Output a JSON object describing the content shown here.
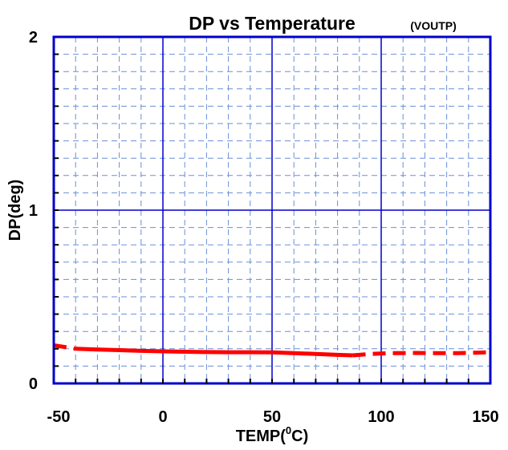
{
  "chart_data": {
    "type": "line",
    "title": "DP vs Temperature",
    "subtitle": "(VOUTP)",
    "xlabel": "TEMP",
    "xlabel_suffix": "C",
    "xlabel_superscript": "0",
    "ylabel": "DP(deg)",
    "xlim": [
      -50,
      150
    ],
    "ylim": [
      0,
      2
    ],
    "x_ticks": [
      -50,
      0,
      50,
      100,
      150
    ],
    "y_ticks": [
      0,
      1,
      2
    ],
    "x_tick_labels": [
      "-50",
      "0",
      "50",
      "100",
      "150"
    ],
    "y_tick_labels": [
      "0",
      "1",
      "2"
    ],
    "grid": true,
    "legend": "none",
    "series": [
      {
        "style": "solid",
        "color": "#ff0000",
        "x": [
          -40,
          -30,
          -20,
          -10,
          0,
          10,
          20,
          30,
          40,
          50,
          60,
          70,
          80,
          87
        ],
        "y": [
          0.2,
          0.196,
          0.192,
          0.188,
          0.185,
          0.183,
          0.181,
          0.18,
          0.18,
          0.179,
          0.175,
          0.17,
          0.165,
          0.162
        ]
      },
      {
        "style": "dashed",
        "color": "#ff0000",
        "x": [
          -50,
          -45,
          -40
        ],
        "y": [
          0.22,
          0.21,
          0.2
        ]
      },
      {
        "style": "dashed",
        "color": "#ff0000",
        "x": [
          87,
          95,
          105,
          115,
          125,
          135,
          145,
          150
        ],
        "y": [
          0.162,
          0.17,
          0.175,
          0.176,
          0.175,
          0.175,
          0.178,
          0.18
        ]
      }
    ]
  },
  "colors": {
    "axis": "#0000cc",
    "major_grid": "#0000cc",
    "minor_grid": "#6a8fd8",
    "series": "#ff0000"
  }
}
